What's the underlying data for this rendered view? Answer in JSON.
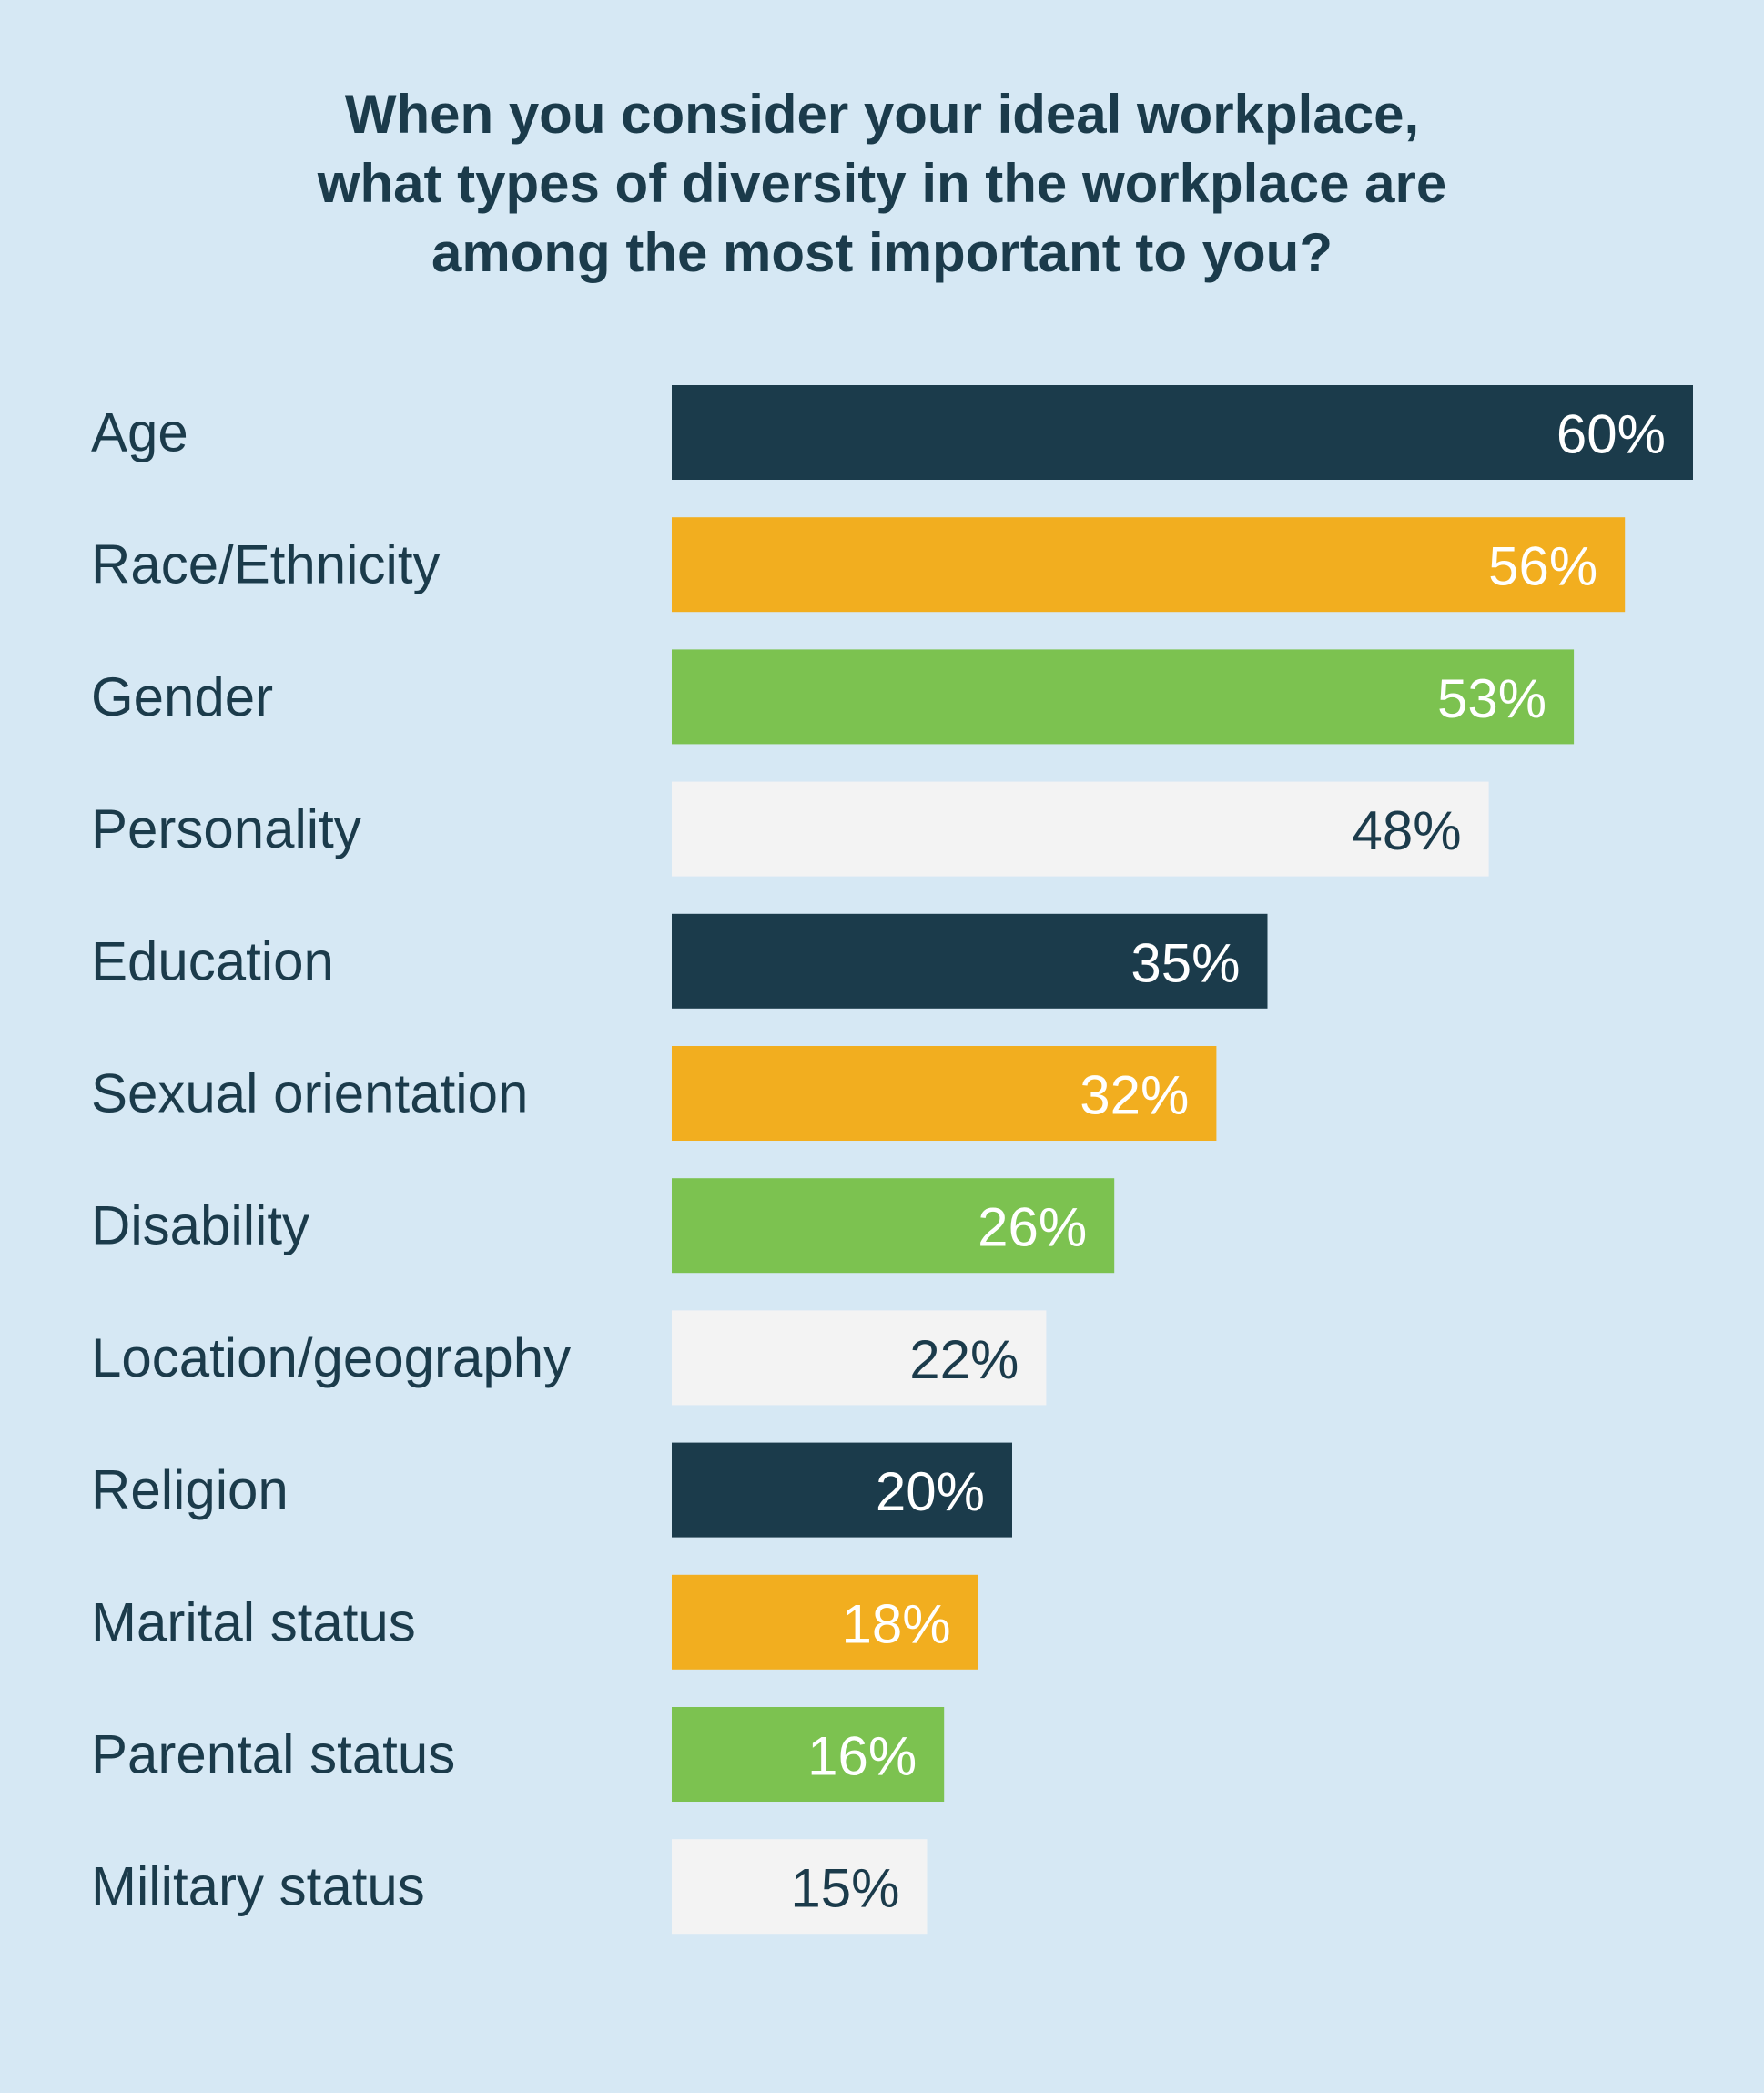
{
  "chart_data": {
    "type": "bar",
    "orientation": "horizontal",
    "title_lines": [
      "When you consider your ideal workplace,",
      "what types of diversity in the workplace are",
      "among the most important to you?"
    ],
    "categories": [
      "Age",
      "Race/Ethnicity",
      "Gender",
      "Personality",
      "Education",
      "Sexual orientation",
      "Disability",
      "Location/geography",
      "Religion",
      "Marital status",
      "Parental status",
      "Military status"
    ],
    "values": [
      60,
      56,
      53,
      48,
      35,
      32,
      26,
      22,
      20,
      18,
      16,
      15
    ],
    "value_labels": [
      "60%",
      "56%",
      "53%",
      "48%",
      "35%",
      "32%",
      "26%",
      "22%",
      "20%",
      "18%",
      "16%",
      "15%"
    ],
    "unit": "%",
    "xlim": [
      0,
      60
    ],
    "grid": false,
    "legend": "none",
    "bar_colors": [
      "#1b3b4b",
      "#f2ae1f",
      "#7cc250",
      "#f3f3f3"
    ],
    "value_label_colors": [
      "#ffffff",
      "#ffffff",
      "#ffffff",
      "#1b3b4b"
    ]
  }
}
